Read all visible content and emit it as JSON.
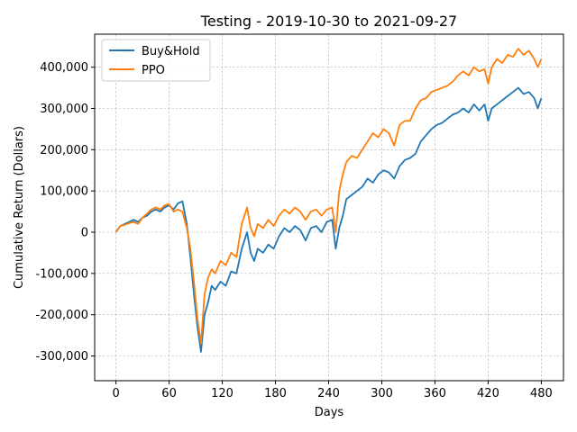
{
  "chart_data": {
    "type": "line",
    "title": "Testing - 2019-10-30 to 2021-09-27",
    "xlabel": "Days",
    "ylabel": "Cumulative Return (Dollars)",
    "xlim": [
      -24,
      505
    ],
    "ylim": [
      -360000,
      480000
    ],
    "xticks": [
      0,
      60,
      120,
      180,
      240,
      300,
      360,
      420,
      480
    ],
    "xtick_labels": [
      "0",
      "60",
      "120",
      "180",
      "240",
      "300",
      "360",
      "420",
      "480"
    ],
    "yticks": [
      -300000,
      -200000,
      -100000,
      0,
      100000,
      200000,
      300000,
      400000
    ],
    "ytick_labels": [
      "-300,000",
      "-200,000",
      "-100,000",
      "0",
      "100,000",
      "200,000",
      "300,000",
      "400,000"
    ],
    "grid": true,
    "legend_position": "top-left",
    "series": [
      {
        "name": "Buy&Hold",
        "color": "#1f77b4",
        "x": [
          0,
          5,
          10,
          15,
          20,
          25,
          30,
          35,
          40,
          45,
          50,
          55,
          60,
          65,
          70,
          75,
          80,
          84,
          88,
          92,
          96,
          100,
          104,
          108,
          112,
          118,
          124,
          130,
          136,
          142,
          148,
          152,
          156,
          160,
          166,
          172,
          178,
          184,
          190,
          196,
          202,
          208,
          214,
          220,
          226,
          232,
          238,
          244,
          248,
          252,
          256,
          260,
          266,
          272,
          278,
          284,
          290,
          296,
          302,
          308,
          314,
          320,
          326,
          332,
          338,
          344,
          350,
          356,
          362,
          368,
          374,
          380,
          386,
          392,
          398,
          404,
          410,
          416,
          420,
          424,
          430,
          436,
          442,
          448,
          454,
          460,
          466,
          472,
          476,
          480
        ],
        "y": [
          0,
          15000,
          20000,
          25000,
          30000,
          25000,
          35000,
          40000,
          50000,
          55000,
          50000,
          60000,
          65000,
          55000,
          70000,
          75000,
          20000,
          -60000,
          -150000,
          -230000,
          -290000,
          -200000,
          -170000,
          -130000,
          -140000,
          -120000,
          -130000,
          -95000,
          -100000,
          -40000,
          0,
          -50000,
          -70000,
          -40000,
          -50000,
          -30000,
          -40000,
          -10000,
          10000,
          0,
          15000,
          5000,
          -20000,
          10000,
          15000,
          0,
          25000,
          30000,
          -40000,
          10000,
          40000,
          80000,
          90000,
          100000,
          110000,
          130000,
          120000,
          140000,
          150000,
          145000,
          130000,
          160000,
          175000,
          180000,
          190000,
          220000,
          235000,
          250000,
          260000,
          265000,
          275000,
          285000,
          290000,
          300000,
          290000,
          310000,
          295000,
          310000,
          270000,
          300000,
          310000,
          320000,
          330000,
          340000,
          350000,
          335000,
          340000,
          325000,
          300000,
          325000
        ]
      },
      {
        "name": "PPO",
        "color": "#ff7f0e",
        "x": [
          0,
          5,
          10,
          15,
          20,
          25,
          30,
          35,
          40,
          45,
          50,
          55,
          60,
          65,
          70,
          75,
          80,
          84,
          88,
          92,
          96,
          100,
          104,
          108,
          112,
          118,
          124,
          130,
          136,
          142,
          148,
          152,
          156,
          160,
          166,
          172,
          178,
          184,
          190,
          196,
          202,
          208,
          214,
          220,
          226,
          232,
          238,
          244,
          248,
          252,
          256,
          260,
          266,
          272,
          278,
          284,
          290,
          296,
          302,
          308,
          314,
          320,
          326,
          332,
          338,
          344,
          350,
          356,
          362,
          368,
          374,
          380,
          386,
          392,
          398,
          404,
          410,
          416,
          420,
          424,
          430,
          436,
          442,
          448,
          454,
          460,
          466,
          472,
          476,
          480
        ],
        "y": [
          0,
          15000,
          18000,
          22000,
          25000,
          20000,
          35000,
          45000,
          55000,
          60000,
          55000,
          65000,
          68000,
          50000,
          55000,
          50000,
          10000,
          -40000,
          -120000,
          -210000,
          -270000,
          -150000,
          -110000,
          -90000,
          -100000,
          -70000,
          -80000,
          -50000,
          -60000,
          20000,
          60000,
          10000,
          -10000,
          20000,
          10000,
          30000,
          15000,
          40000,
          55000,
          45000,
          60000,
          50000,
          30000,
          50000,
          55000,
          40000,
          55000,
          60000,
          0,
          100000,
          140000,
          170000,
          185000,
          180000,
          200000,
          220000,
          240000,
          230000,
          250000,
          240000,
          210000,
          260000,
          270000,
          270000,
          300000,
          320000,
          325000,
          340000,
          345000,
          350000,
          355000,
          365000,
          380000,
          390000,
          380000,
          400000,
          390000,
          395000,
          360000,
          400000,
          420000,
          410000,
          430000,
          425000,
          445000,
          430000,
          440000,
          420000,
          400000,
          420000
        ]
      }
    ]
  }
}
